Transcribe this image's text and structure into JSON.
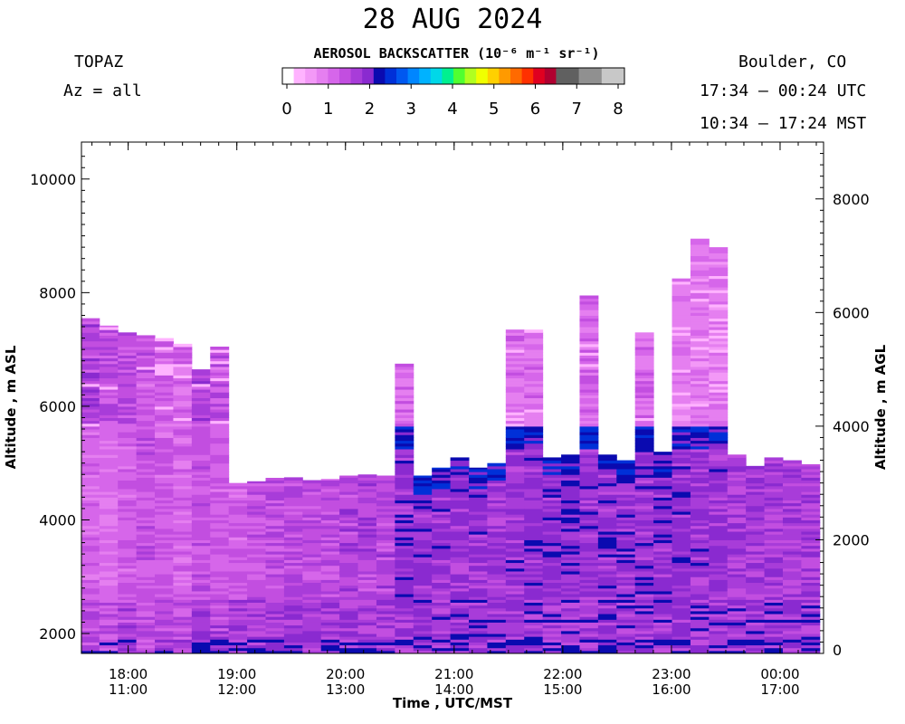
{
  "header": {
    "title": "28 AUG 2024",
    "instrument": "TOPAZ",
    "azimuth": "Az = all",
    "location": "Boulder, CO",
    "utc_range": "17:34 – 00:24 UTC",
    "mst_range": "10:34 – 17:24 MST"
  },
  "colorbar": {
    "title_text": "AEROSOL BACKSCATTER (10⁻⁶ m⁻¹ sr⁻¹)",
    "ticks": [
      "0",
      "1",
      "2",
      "3",
      "4",
      "5",
      "6",
      "7",
      "8"
    ],
    "colors": [
      "#ffffff",
      "#ffb3ff",
      "#f399f7",
      "#e57ff0",
      "#d666ea",
      "#c24ee0",
      "#a83cd9",
      "#8a2ad0",
      "#0a0ab0",
      "#0030d8",
      "#0058f0",
      "#0086ff",
      "#00b2ff",
      "#00d8e8",
      "#00f090",
      "#50ff30",
      "#b0ff20",
      "#f0ff00",
      "#ffd000",
      "#ff9a00",
      "#ff6a00",
      "#ff3000",
      "#e00020",
      "#b00030",
      "#606060",
      "#606060",
      "#909090",
      "#909090",
      "#c8c8c8",
      "#c8c8c8"
    ]
  },
  "chart_data": {
    "type": "heatmap",
    "title": "28 AUG 2024",
    "xlabel": "Time , UTC/MST",
    "ylabel_left": "Altitude , m ASL",
    "ylabel_right": "Altitude , m AGL",
    "x_ticks_utc": [
      "18:00",
      "19:00",
      "20:00",
      "21:00",
      "22:00",
      "23:00",
      "00:00"
    ],
    "x_ticks_mst": [
      "11:00",
      "12:00",
      "13:00",
      "14:00",
      "15:00",
      "16:00",
      "17:00"
    ],
    "x_tick_hours": [
      18,
      19,
      20,
      21,
      22,
      23,
      24
    ],
    "xlim_hours": [
      17.57,
      24.4
    ],
    "y_left_ticks": [
      2000,
      4000,
      6000,
      8000,
      10000
    ],
    "y_left_lim": [
      1650,
      10650
    ],
    "y_right_ticks": [
      0,
      2000,
      4000,
      6000,
      8000
    ],
    "ground_altitude_m": 1650,
    "value_units": "10^-6 m^-1 sr^-1",
    "value_range": [
      0,
      8
    ],
    "profiles": [
      {
        "t": 17.65,
        "top": 7550,
        "upper": 1.6,
        "mid": 1.2,
        "low": 1.5
      },
      {
        "t": 17.82,
        "top": 7420,
        "upper": 1.5,
        "mid": 1.1,
        "low": 1.4
      },
      {
        "t": 17.99,
        "top": 7300,
        "upper": 1.5,
        "mid": 1.3,
        "low": 1.6
      },
      {
        "t": 18.16,
        "top": 7250,
        "upper": 1.3,
        "mid": 1.4,
        "low": 1.5
      },
      {
        "t": 18.33,
        "top": 7200,
        "upper": 1.3,
        "mid": 1.3,
        "low": 1.6
      },
      {
        "t": 18.5,
        "top": 7100,
        "upper": 1.2,
        "mid": 1.2,
        "low": 1.6
      },
      {
        "t": 18.67,
        "top": 6650,
        "upper": 1.6,
        "mid": 1.4,
        "low": 1.7
      },
      {
        "t": 18.84,
        "top": 7050,
        "upper": 1.4,
        "mid": 1.3,
        "low": 1.6
      },
      {
        "t": 19.01,
        "top": 4650,
        "upper": 0,
        "mid": 1.3,
        "low": 1.7
      },
      {
        "t": 19.18,
        "top": 4680,
        "upper": 0,
        "mid": 1.4,
        "low": 1.7
      },
      {
        "t": 19.35,
        "top": 4740,
        "upper": 0,
        "mid": 1.5,
        "low": 1.7
      },
      {
        "t": 19.52,
        "top": 4750,
        "upper": 0,
        "mid": 1.5,
        "low": 1.7
      },
      {
        "t": 19.69,
        "top": 4700,
        "upper": 0,
        "mid": 1.5,
        "low": 1.7
      },
      {
        "t": 19.86,
        "top": 4720,
        "upper": 0,
        "mid": 1.5,
        "low": 1.7
      },
      {
        "t": 20.03,
        "top": 4780,
        "upper": 0,
        "mid": 1.6,
        "low": 1.7
      },
      {
        "t": 20.2,
        "top": 4800,
        "upper": 0,
        "mid": 1.6,
        "low": 1.7
      },
      {
        "t": 20.37,
        "top": 4780,
        "upper": 0,
        "mid": 1.6,
        "low": 1.7
      },
      {
        "t": 20.54,
        "top": 6750,
        "upper": 1.2,
        "mid": 1.9,
        "low": 1.7
      },
      {
        "t": 20.71,
        "top": 4780,
        "upper": 0,
        "mid": 1.9,
        "low": 1.8
      },
      {
        "t": 20.88,
        "top": 4920,
        "upper": 0,
        "mid": 1.9,
        "low": 1.8
      },
      {
        "t": 21.05,
        "top": 5100,
        "upper": 0,
        "mid": 1.8,
        "low": 1.8
      },
      {
        "t": 21.22,
        "top": 4920,
        "upper": 0,
        "mid": 1.8,
        "low": 1.8
      },
      {
        "t": 21.39,
        "top": 5000,
        "upper": 0,
        "mid": 1.8,
        "low": 1.8
      },
      {
        "t": 21.56,
        "top": 7350,
        "upper": 1.1,
        "mid": 1.8,
        "low": 1.8
      },
      {
        "t": 21.73,
        "top": 7350,
        "upper": 1.1,
        "mid": 1.9,
        "low": 1.8
      },
      {
        "t": 21.9,
        "top": 5100,
        "upper": 0,
        "mid": 1.9,
        "low": 1.8
      },
      {
        "t": 22.07,
        "top": 5150,
        "upper": 0,
        "mid": 2.0,
        "low": 1.8
      },
      {
        "t": 22.24,
        "top": 7950,
        "upper": 1.2,
        "mid": 1.9,
        "low": 1.8
      },
      {
        "t": 22.41,
        "top": 5150,
        "upper": 0,
        "mid": 1.9,
        "low": 1.8
      },
      {
        "t": 22.58,
        "top": 5050,
        "upper": 0,
        "mid": 1.9,
        "low": 1.8
      },
      {
        "t": 22.75,
        "top": 7300,
        "upper": 1.2,
        "mid": 1.9,
        "low": 1.8
      },
      {
        "t": 22.92,
        "top": 5200,
        "upper": 0,
        "mid": 1.9,
        "low": 1.8
      },
      {
        "t": 23.09,
        "top": 8250,
        "upper": 1.0,
        "mid": 1.9,
        "low": 1.8
      },
      {
        "t": 23.26,
        "top": 8950,
        "upper": 1.0,
        "mid": 1.8,
        "low": 1.8
      },
      {
        "t": 23.43,
        "top": 8800,
        "upper": 1.0,
        "mid": 1.8,
        "low": 1.8
      },
      {
        "t": 23.6,
        "top": 5150,
        "upper": 0,
        "mid": 1.7,
        "low": 1.8
      },
      {
        "t": 23.77,
        "top": 4950,
        "upper": 0,
        "mid": 1.7,
        "low": 1.8
      },
      {
        "t": 23.94,
        "top": 5100,
        "upper": 0,
        "mid": 1.7,
        "low": 1.8
      },
      {
        "t": 24.11,
        "top": 5050,
        "upper": 0,
        "mid": 1.7,
        "low": 1.8
      },
      {
        "t": 24.28,
        "top": 4980,
        "upper": 0,
        "mid": 1.7,
        "low": 1.8
      }
    ]
  }
}
